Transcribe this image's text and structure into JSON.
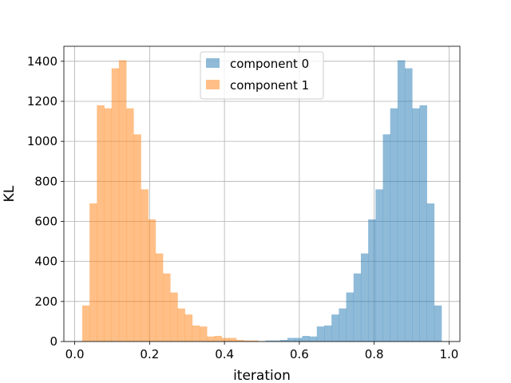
{
  "chart_data": {
    "type": "bar",
    "title": "",
    "xlabel": "iteration",
    "ylabel": "KL",
    "xlim": [
      -0.029,
      1.029
    ],
    "ylim": [
      0,
      1475
    ],
    "xticks": [
      0.0,
      0.2,
      0.4,
      0.6,
      0.8,
      1.0
    ],
    "xtick_labels": [
      "0.0",
      "0.2",
      "0.4",
      "0.6",
      "0.8",
      "1.0"
    ],
    "yticks": [
      0,
      200,
      400,
      600,
      800,
      1000,
      1200,
      1400
    ],
    "ytick_labels": [
      "0",
      "200",
      "400",
      "600",
      "800",
      "1000",
      "1200",
      "1400"
    ],
    "grid": true,
    "legend_position": "top-center",
    "series": [
      {
        "name": "component 0",
        "color": "#1f77b4",
        "alpha": 0.5,
        "bin_edges": [
          0.0,
          0.0196,
          0.0392,
          0.0588,
          0.0784,
          0.098,
          0.1176,
          0.1372,
          0.1568,
          0.1764,
          0.196,
          0.2156,
          0.2352,
          0.2548,
          0.2744,
          0.294,
          0.3136,
          0.3332,
          0.3528,
          0.3724,
          0.392,
          0.4116,
          0.4312,
          0.4508,
          0.4704,
          0.49,
          0.5096,
          0.5292,
          0.5488,
          0.5684,
          0.588,
          0.6076,
          0.6272,
          0.6468,
          0.6664,
          0.686,
          0.7056,
          0.7252,
          0.7448,
          0.7644,
          0.784,
          0.8036,
          0.8232,
          0.8428,
          0.8624,
          0.882,
          0.9016,
          0.9212,
          0.9408,
          0.9604,
          0.98
        ],
        "counts": [
          0,
          0,
          0,
          0,
          0,
          0,
          0,
          0,
          0,
          0,
          0,
          0,
          0,
          0,
          0,
          0,
          0,
          0,
          0,
          0,
          0,
          0,
          0,
          0,
          0,
          0,
          5,
          5,
          8,
          18,
          18,
          28,
          25,
          75,
          80,
          135,
          165,
          245,
          340,
          440,
          610,
          760,
          1035,
          1165,
          1405,
          1365,
          1165,
          1180,
          690,
          180
        ]
      },
      {
        "name": "component 1",
        "color": "#ff7f0e",
        "alpha": 0.5,
        "bin_edges": [
          0.02,
          0.0396,
          0.0592,
          0.0788,
          0.0984,
          0.118,
          0.1376,
          0.1572,
          0.1768,
          0.1964,
          0.216,
          0.2356,
          0.2552,
          0.2748,
          0.2944,
          0.314,
          0.3336,
          0.3532,
          0.3728,
          0.3924,
          0.412,
          0.4316,
          0.4512,
          0.4708,
          0.4904,
          0.51,
          0.5296,
          0.5492,
          0.5688,
          0.5884,
          0.608,
          0.6276,
          0.6472,
          0.6668,
          0.6864,
          0.706,
          0.7256,
          0.7452,
          0.7648,
          0.7844,
          0.804,
          0.8236,
          0.8432,
          0.8628,
          0.8824,
          0.902,
          0.9216,
          0.9412,
          0.9608,
          0.9804,
          1.0
        ],
        "counts": [
          180,
          690,
          1180,
          1165,
          1365,
          1405,
          1165,
          1035,
          760,
          610,
          440,
          340,
          245,
          165,
          135,
          80,
          75,
          25,
          28,
          18,
          18,
          8,
          5,
          5,
          0,
          0,
          0,
          0,
          0,
          0,
          0,
          0,
          0,
          0,
          0,
          0,
          0,
          0,
          0,
          0,
          0,
          0,
          0,
          0,
          0,
          0,
          0,
          0,
          0,
          0
        ]
      }
    ]
  }
}
